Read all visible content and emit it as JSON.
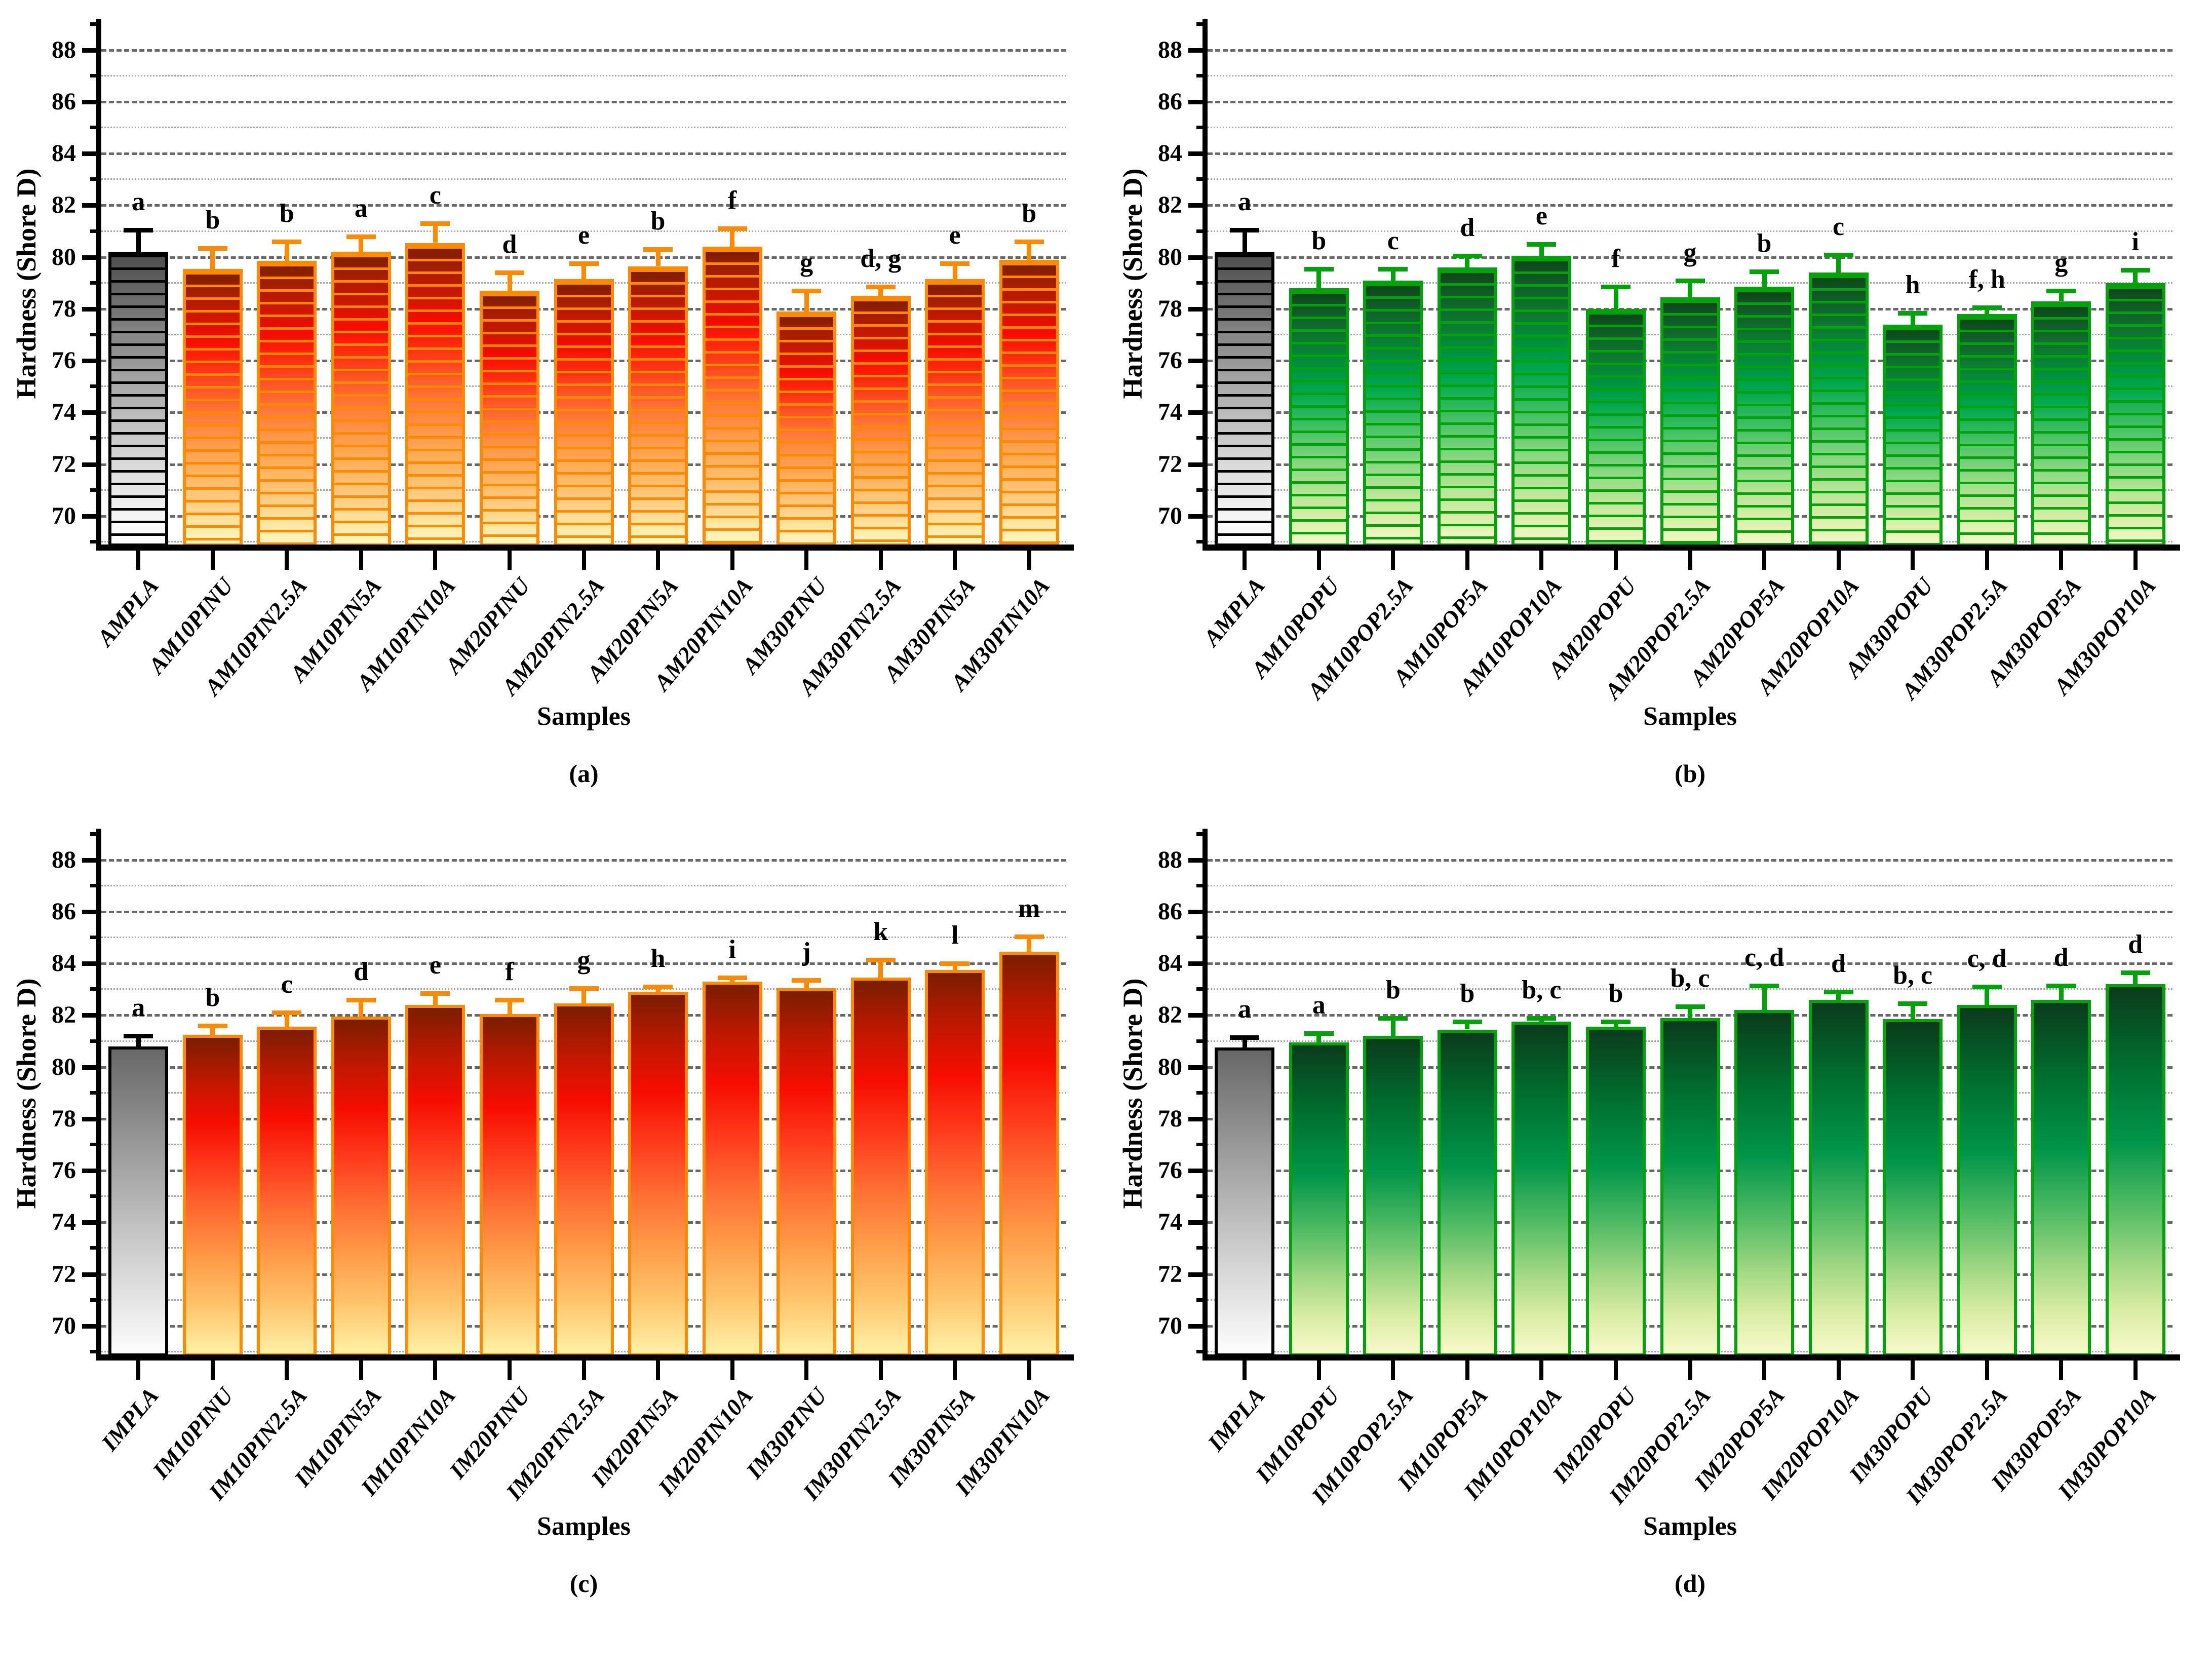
{
  "figure": {
    "y_axis_label": "Hardness (Shore D)",
    "x_axis_label": "Samples",
    "y_ticks": [
      70,
      72,
      74,
      76,
      78,
      80,
      82,
      84,
      86,
      88
    ],
    "ylim": [
      68.9,
      89.05
    ],
    "colors": {
      "orange_accent": "#FF8A00",
      "green_accent": "#00A30A",
      "control_black": "#000000",
      "grid_major": "#686868",
      "grid_minor": "#A8A8A8",
      "background": "#FFFFFF"
    }
  },
  "chart_data": [
    {
      "type": "bar",
      "panel": "a",
      "caption": "(a)",
      "title": "",
      "xlabel": "Samples",
      "ylabel": "Hardness (Shore D)",
      "ylim": [
        68.9,
        89.05
      ],
      "yticks": [
        70,
        72,
        74,
        76,
        78,
        80,
        82,
        84,
        86,
        88
      ],
      "grid": "major-dashed, minor-dotted",
      "legend": "none",
      "scheme": "orange-striped",
      "control_scheme": "gray-striped",
      "bar_border_color": "#FF8A00",
      "error_color": "#FF8A00",
      "control_color": "#000000",
      "categories": [
        "AMPLA",
        "AM10PINU",
        "AM10PIN2.5A",
        "AM10PIN5A",
        "AM10PIN10A",
        "AM20PINU",
        "AM20PIN2.5A",
        "AM20PIN5A",
        "AM20PIN10A",
        "AM30PINU",
        "AM30PIN2.5A",
        "AM30PIN5A",
        "AM30PIN10A"
      ],
      "values": [
        80.2,
        79.55,
        79.85,
        80.2,
        80.55,
        78.7,
        79.15,
        79.65,
        80.4,
        77.9,
        78.5,
        79.15,
        79.9
      ],
      "errors": [
        0.85,
        0.8,
        0.75,
        0.6,
        0.75,
        0.7,
        0.6,
        0.65,
        0.7,
        0.8,
        0.35,
        0.6,
        0.7
      ],
      "letters": [
        "a",
        "b",
        "b",
        "a",
        "c",
        "d",
        "e",
        "b",
        "f",
        "g",
        "d, g",
        "e",
        "b"
      ]
    },
    {
      "type": "bar",
      "panel": "b",
      "caption": "(b)",
      "title": "",
      "xlabel": "Samples",
      "ylabel": "Hardness (Shore D)",
      "ylim": [
        68.9,
        89.05
      ],
      "yticks": [
        70,
        72,
        74,
        76,
        78,
        80,
        82,
        84,
        86,
        88
      ],
      "grid": "major-dashed, minor-dotted",
      "legend": "none",
      "scheme": "green-striped",
      "control_scheme": "gray-striped",
      "bar_border_color": "#00A30A",
      "error_color": "#00A30A",
      "control_color": "#000000",
      "categories": [
        "AMPLA",
        "AM10POPU",
        "AM10POP2.5A",
        "AM10POP5A",
        "AM10POP10A",
        "AM20POPU",
        "AM20POP2.5A",
        "AM20POP5A",
        "AM20POP10A",
        "AM30POPU",
        "AM30POP2.5A",
        "AM30POP5A",
        "AM30POP10A"
      ],
      "values": [
        80.2,
        78.8,
        79.1,
        79.6,
        80.05,
        78.0,
        78.45,
        78.85,
        79.4,
        77.4,
        77.8,
        78.3,
        79.0
      ],
      "errors": [
        0.85,
        0.75,
        0.45,
        0.45,
        0.45,
        0.85,
        0.65,
        0.6,
        0.7,
        0.45,
        0.25,
        0.4,
        0.5
      ],
      "letters": [
        "a",
        "b",
        "c",
        "d",
        "e",
        "f",
        "g",
        "b",
        "c",
        "h",
        "f, h",
        "g",
        "i"
      ]
    },
    {
      "type": "bar",
      "panel": "c",
      "caption": "(c)",
      "title": "",
      "xlabel": "Samples",
      "ylabel": "Hardness (Shore D)",
      "ylim": [
        68.9,
        89.05
      ],
      "yticks": [
        70,
        72,
        74,
        76,
        78,
        80,
        82,
        84,
        86,
        88
      ],
      "grid": "major-dashed, minor-dotted",
      "legend": "none",
      "scheme": "orange-smooth",
      "control_scheme": "gray-smooth",
      "bar_border_color": "#FF8A00",
      "error_color": "#FF8A00",
      "control_color": "#000000",
      "categories": [
        "IMPLA",
        "IM10PINU",
        "IM10PIN2.5A",
        "IM10PIN5A",
        "IM10PIN10A",
        "IM20PINU",
        "IM20PIN2.5A",
        "IM20PIN5A",
        "IM20PIN10A",
        "IM30PINU",
        "IM30PIN2.5A",
        "IM30PIN5A",
        "IM30PIN10A"
      ],
      "values": [
        80.8,
        81.25,
        81.55,
        81.95,
        82.4,
        82.05,
        82.45,
        82.9,
        83.3,
        83.05,
        83.45,
        83.75,
        84.45
      ],
      "errors": [
        0.4,
        0.35,
        0.55,
        0.65,
        0.45,
        0.55,
        0.6,
        0.2,
        0.15,
        0.3,
        0.7,
        0.25,
        0.6
      ],
      "letters": [
        "a",
        "b",
        "c",
        "d",
        "e",
        "f",
        "g",
        "h",
        "i",
        "j",
        "k",
        "l",
        "m"
      ]
    },
    {
      "type": "bar",
      "panel": "d",
      "caption": "(d)",
      "title": "",
      "xlabel": "Samples",
      "ylabel": "Hardness (Shore D)",
      "ylim": [
        68.9,
        89.05
      ],
      "yticks": [
        70,
        72,
        74,
        76,
        78,
        80,
        82,
        84,
        86,
        88
      ],
      "grid": "major-dashed, minor-dotted",
      "legend": "none",
      "scheme": "green-smooth",
      "control_scheme": "gray-smooth",
      "bar_border_color": "#00A30A",
      "error_color": "#00A30A",
      "control_color": "#000000",
      "categories": [
        "IMPLA",
        "IM10POPU",
        "IM10POP2.5A",
        "IM10POP5A",
        "IM10POP10A",
        "IM20POPU",
        "IM20POP2.5A",
        "IM20POP5A",
        "IM20POP10A",
        "IM30POPU",
        "IM30POP2.5A",
        "IM30POP5A",
        "IM30POP10A"
      ],
      "values": [
        80.75,
        80.95,
        81.2,
        81.45,
        81.75,
        81.55,
        81.9,
        82.2,
        82.6,
        81.85,
        82.4,
        82.6,
        83.2
      ],
      "errors": [
        0.4,
        0.35,
        0.7,
        0.3,
        0.15,
        0.2,
        0.45,
        0.95,
        0.3,
        0.6,
        0.7,
        0.55,
        0.45
      ],
      "letters": [
        "a",
        "a",
        "b",
        "b",
        "b, c",
        "b",
        "b, c",
        "c, d",
        "d",
        "b, c",
        "c, d",
        "d",
        "d"
      ]
    }
  ]
}
